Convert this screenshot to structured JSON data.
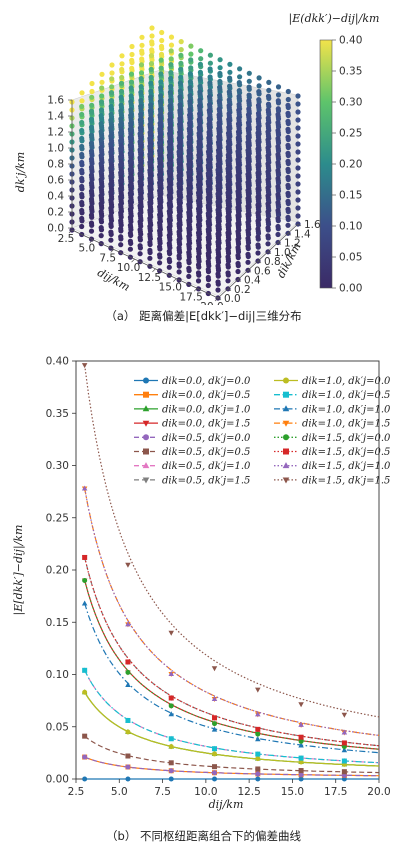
{
  "figure_a": {
    "caption": "（a）  距离偏差|E[dkk′]−dij|三维分布",
    "colorbar_label": "|E(dkk′)−dij|/km",
    "colorbar_ticks": [
      "0.40",
      "0.35",
      "0.30",
      "0.25",
      "0.20",
      "0.15",
      "0.10",
      "0.05",
      "0.00"
    ],
    "axis_x_label": "dij/km",
    "axis_x_ticks": [
      "2.5",
      "5.0",
      "7.5",
      "10.0",
      "12.5",
      "15.0",
      "17.5",
      "20.0"
    ],
    "axis_y_label": "dik/km",
    "axis_y_ticks": [
      "0.0",
      "0.2",
      "0.4",
      "0.6",
      "0.8",
      "1.0",
      "1.2",
      "1.4",
      "1.6"
    ],
    "axis_z_label": "dk′j/km",
    "axis_z_ticks": [
      "0.0",
      "0.2",
      "0.4",
      "0.6",
      "0.8",
      "1.0",
      "1.2",
      "1.4",
      "1.6"
    ],
    "colors": {
      "low": "#3b2a66",
      "mid": "#2c8c8c",
      "high": "#f2e34a"
    }
  },
  "chart_data": {
    "type": "line",
    "caption": "（b）  不同枢纽距离组合下的偏差曲线",
    "xlabel": "dij/km",
    "ylabel": "|E[dkk′]−dij|/km",
    "xlim": [
      2.5,
      20.0
    ],
    "ylim": [
      0.0,
      0.4
    ],
    "x_ticks": [
      "2.5",
      "5.0",
      "7.5",
      "10.0",
      "12.5",
      "15.0",
      "17.5",
      "20.0"
    ],
    "y_ticks": [
      "0.00",
      "0.05",
      "0.10",
      "0.15",
      "0.20",
      "0.25",
      "0.30",
      "0.35",
      "0.40"
    ],
    "series": [
      {
        "name": "dik=0.0,  dk′j=0.0",
        "color": "#1f77b4",
        "marker": "circle",
        "dash": "solid",
        "values": [
          0.0,
          0.0,
          0.0,
          0.0,
          0.0,
          0.0,
          0.0
        ]
      },
      {
        "name": "dik=0.0,  dk′j=0.5",
        "color": "#ff7f0e",
        "marker": "square",
        "dash": "solid",
        "values": [
          0.021,
          0.0115,
          0.0079,
          0.006,
          0.0049,
          0.0041,
          0.0035
        ]
      },
      {
        "name": "dik=0.0,  dk′j=1.0",
        "color": "#2ca02c",
        "marker": "triangle-up",
        "dash": "solid",
        "values": [
          0.083,
          0.045,
          0.031,
          0.024,
          0.0195,
          0.0163,
          0.014
        ]
      },
      {
        "name": "dik=0.0,  dk′j=1.5",
        "color": "#d62728",
        "marker": "triangle-down",
        "dash": "solid",
        "values": [
          0.19,
          0.102,
          0.07,
          0.053,
          0.043,
          0.036,
          0.031
        ]
      },
      {
        "name": "dik=0.5,  dk′j=0.0",
        "color": "#9467bd",
        "marker": "circle",
        "dash": "dashed",
        "values": [
          0.021,
          0.0115,
          0.0079,
          0.006,
          0.0049,
          0.0041,
          0.0035
        ]
      },
      {
        "name": "dik=0.5,  dk′j=0.5",
        "color": "#8c564b",
        "marker": "square",
        "dash": "dashed",
        "values": [
          0.041,
          0.022,
          0.0155,
          0.0118,
          0.0096,
          0.0081,
          0.007
        ]
      },
      {
        "name": "dik=0.5,  dk′j=1.0",
        "color": "#e377c2",
        "marker": "triangle-up",
        "dash": "dashed",
        "values": [
          0.104,
          0.056,
          0.0385,
          0.029,
          0.0238,
          0.02,
          0.0172
        ]
      },
      {
        "name": "dik=0.5,  dk′j=1.5",
        "color": "#7f7f7f",
        "marker": "triangle-down",
        "dash": "dashed",
        "values": [
          0.212,
          0.112,
          0.0775,
          0.0585,
          0.0475,
          0.04,
          0.0345
        ]
      },
      {
        "name": "dik=1.0,  dk′j=0.0",
        "color": "#bcbd22",
        "marker": "circle",
        "dash": "solid",
        "values": [
          0.083,
          0.045,
          0.031,
          0.024,
          0.0195,
          0.0163,
          0.014
        ]
      },
      {
        "name": "dik=1.0,  dk′j=0.5",
        "color": "#17becf",
        "marker": "square",
        "dash": "dashdot",
        "values": [
          0.104,
          0.056,
          0.0385,
          0.029,
          0.0238,
          0.02,
          0.0172
        ]
      },
      {
        "name": "dik=1.0,  dk′j=1.0",
        "color": "#1f77b4",
        "marker": "triangle-up",
        "dash": "dashdot",
        "values": [
          0.168,
          0.09,
          0.062,
          0.0472,
          0.038,
          0.032,
          0.0275
        ]
      },
      {
        "name": "dik=1.0,  dk′j=1.5",
        "color": "#ff7f0e",
        "marker": "triangle-down",
        "dash": "dashdot",
        "values": [
          0.278,
          0.148,
          0.1005,
          0.0765,
          0.0618,
          0.0518,
          0.0445
        ]
      },
      {
        "name": "dik=1.5,  dk′j=0.0",
        "color": "#2ca02c",
        "marker": "circle",
        "dash": "dotted",
        "values": [
          0.19,
          0.102,
          0.07,
          0.053,
          0.043,
          0.036,
          0.031
        ]
      },
      {
        "name": "dik=1.5,  dk′j=0.5",
        "color": "#d62728",
        "marker": "square",
        "dash": "dotted",
        "values": [
          0.212,
          0.112,
          0.0775,
          0.0585,
          0.0475,
          0.04,
          0.0345
        ]
      },
      {
        "name": "dik=1.5,  dk′j=1.0",
        "color": "#9467bd",
        "marker": "triangle-up",
        "dash": "dotted",
        "values": [
          0.278,
          0.148,
          0.1005,
          0.0765,
          0.0618,
          0.0518,
          0.0445
        ]
      },
      {
        "name": "dik=1.5,  dk′j=1.5",
        "color": "#8c564b",
        "marker": "triangle-down",
        "dash": "dotted",
        "values": [
          0.396,
          0.205,
          0.14,
          0.106,
          0.0855,
          0.0715,
          0.0615
        ]
      }
    ],
    "x": [
      3.0,
      5.5,
      8.0,
      10.5,
      13.0,
      15.5,
      18.0
    ],
    "legend_position": "upper-right, two columns"
  }
}
